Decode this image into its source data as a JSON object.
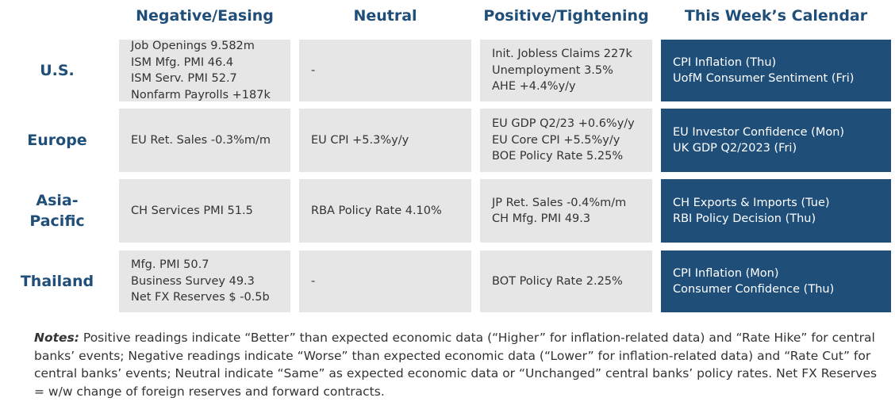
{
  "columns": {
    "negative": "Negative/Easing",
    "neutral": "Neutral",
    "positive": "Positive/Tightening",
    "calendar": "This Week’s Calendar"
  },
  "rows": [
    {
      "label": "U.S.",
      "negative": [
        "Job Openings 9.582m",
        "ISM Mfg. PMI 46.4",
        "ISM Serv. PMI 52.7",
        "Nonfarm Payrolls +187k"
      ],
      "neutral": [
        "-"
      ],
      "positive": [
        "Init. Jobless Claims 227k",
        "Unemployment 3.5%",
        "AHE +4.4%y/y"
      ],
      "calendar": [
        "CPI Inflation (Thu)",
        "UofM Consumer Sentiment (Fri)"
      ]
    },
    {
      "label": "Europe",
      "negative": [
        "EU Ret. Sales -0.3%m/m"
      ],
      "neutral": [
        "EU CPI +5.3%y/y"
      ],
      "positive": [
        "EU GDP Q2/23 +0.6%y/y",
        "EU Core CPI +5.5%y/y",
        "BOE Policy Rate 5.25%"
      ],
      "calendar": [
        "EU Investor Confidence (Mon)",
        "UK GDP Q2/2023 (Fri)"
      ]
    },
    {
      "label_lines": [
        "Asia-",
        "Pacific"
      ],
      "negative": [
        "CH Services PMI 51.5"
      ],
      "neutral": [
        "RBA Policy Rate 4.10%"
      ],
      "positive": [
        "JP Ret. Sales -0.4%m/m",
        "CH Mfg. PMI 49.3"
      ],
      "calendar": [
        "CH Exports & Imports (Tue)",
        "RBI Policy Decision (Thu)"
      ]
    },
    {
      "label": "Thailand",
      "negative": [
        "Mfg. PMI 50.7",
        "Business Survey 49.3",
        "Net FX Reserves $ -0.5b"
      ],
      "neutral": [
        "-"
      ],
      "positive": [
        "BOT Policy Rate 2.25%"
      ],
      "calendar": [
        "CPI Inflation (Mon)",
        "Consumer Confidence (Thu)"
      ]
    }
  ],
  "notes": {
    "label": "Notes:",
    "text": " Positive readings indicate “Better” than expected economic data (“Higher” for inflation-related data) and “Rate Hike” for central banks’ events; Negative readings indicate “Worse” than expected economic data (“Lower” for inflation-related data) and “Rate Cut” for central banks’ events; Neutral indicate “Same” as expected economic data or “Unchanged” central banks’ policy rates. Net FX Reserves = w/w change of foreign reserves and forward contracts."
  },
  "colors": {
    "header_text": "#1f4e79",
    "cell_background": "#e6e6e6",
    "calendar_background": "#1f4e79",
    "calendar_text": "#ffffff"
  }
}
